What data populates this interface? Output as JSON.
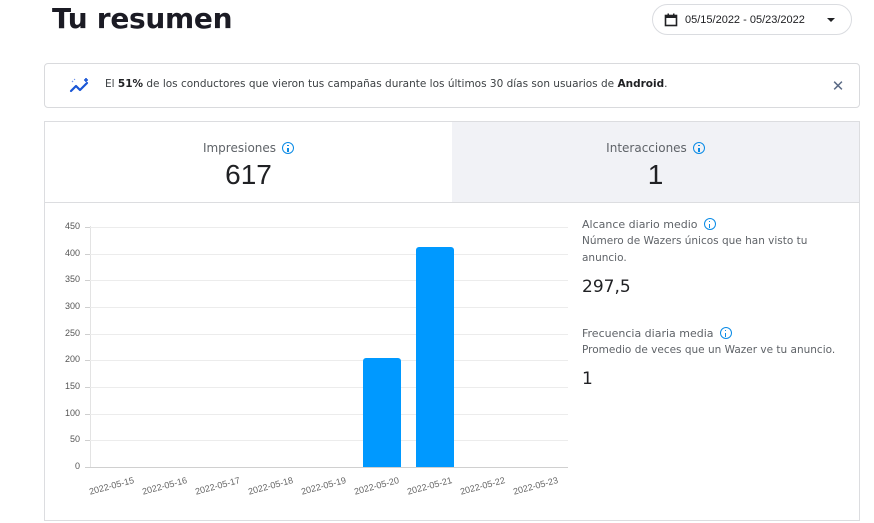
{
  "header": {
    "title": "Tu resumen",
    "date_range": "05/15/2022 - 05/23/2022",
    "calendar_icon": "calendar-icon",
    "dropdown_icon": "caret-down-icon"
  },
  "alert": {
    "icon": "trending-sparkle-icon",
    "text_before": "El ",
    "highlight_percent": "51%",
    "text_middle": " de los conductores que vieron tus campañas durante los últimos 30 días son usuarios de ",
    "highlight_platform": "Android",
    "text_after": ".",
    "close_icon": "close-icon",
    "close_symbol": "✕"
  },
  "tabs": [
    {
      "label": "Impresiones",
      "value": "617",
      "active": true
    },
    {
      "label": "Interacciones",
      "value": "1",
      "active": false
    }
  ],
  "stats": [
    {
      "title": "Alcance diario medio",
      "description": "Número de Wazers únicos que han visto tu anuncio.",
      "value": "297,5"
    },
    {
      "title": "Frecuencia diaria media",
      "description": "Promedio de veces que un Wazer ve tu anuncio.",
      "value": "1"
    }
  ],
  "colors": {
    "bar": "#0099ff",
    "info_icon": "#0a8be6",
    "inactive_tab_bg": "#f1f2f6",
    "alert_icon": "#1a56d6"
  },
  "chart_data": {
    "type": "bar",
    "title": "Impresiones",
    "xlabel": "",
    "ylabel": "",
    "categories": [
      "2022-05-15",
      "2022-05-16",
      "2022-05-17",
      "2022-05-18",
      "2022-05-19",
      "2022-05-20",
      "2022-05-21",
      "2022-05-22",
      "2022-05-23"
    ],
    "values": [
      0,
      0,
      0,
      0,
      0,
      204,
      413,
      0,
      0
    ],
    "yticks": [
      "0",
      "50",
      "100",
      "150",
      "200",
      "250",
      "300",
      "350",
      "400",
      "450"
    ],
    "ylim": [
      0,
      450
    ],
    "grid": true,
    "legend": "none"
  }
}
